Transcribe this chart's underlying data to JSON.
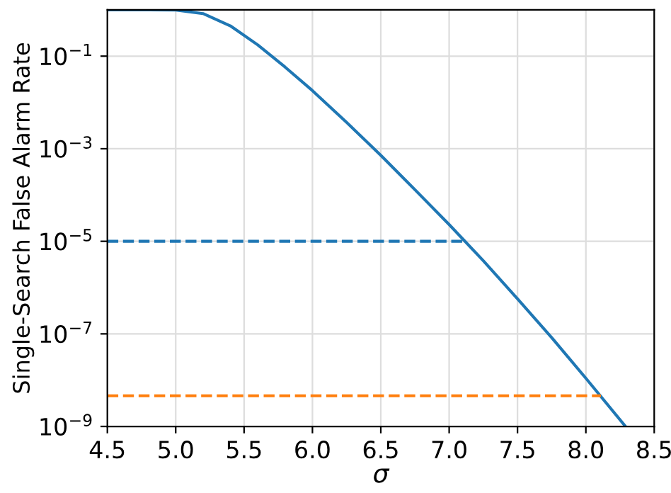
{
  "chart_data": {
    "type": "line",
    "xlabel": "σ",
    "ylabel": "Single-Search False Alarm Rate",
    "xlim": [
      4.5,
      8.5
    ],
    "ylim": [
      1e-09,
      1
    ],
    "log": "y",
    "grid": true,
    "line_style": "solid",
    "marker": "none",
    "xticks": [
      4.5,
      {
        "value": 5.0,
        "label": "5.0"
      },
      5.5,
      {
        "value": 6.0,
        "label": "6.0"
      },
      6.5,
      {
        "value": 7.0,
        "label": "7.0"
      },
      7.5,
      {
        "value": 8.0,
        "label": "8.0"
      },
      8.5
    ],
    "yticks": [
      {
        "value": 1e-09,
        "label": "10$^{−9}$"
      },
      {
        "value": 1e-07,
        "label": "10$^{−7}$"
      },
      {
        "value": 1e-05,
        "label": "10$^{−5}$"
      },
      {
        "value": 0.001,
        "label": "10$^{−3}$"
      },
      {
        "value": 0.1,
        "label": "10$^{−1}$"
      }
    ],
    "series": [
      {
        "color": "#1f77b4",
        "x": [
          4.5,
          4.8,
          5.0,
          5.2,
          5.4,
          5.6,
          5.8,
          6.0,
          6.25,
          6.5,
          6.75,
          7.0,
          7.25,
          7.5,
          7.75,
          8.0,
          8.29
        ],
        "values": [
          1,
          1,
          0.99,
          0.83,
          0.45,
          0.175,
          0.058,
          0.018,
          0.0037,
          0.00072,
          0.00013,
          2.3e-05,
          3.8e-06,
          5.7e-07,
          8.3e-08,
          1.1e-08,
          1e-09
        ]
      },
      {
        "color": "#1f77b4",
        "line_style": "dashed",
        "x": [
          4.5,
          7.1
        ],
        "values": [
          1e-05,
          1e-05
        ]
      },
      {
        "color": "#ff7f0e",
        "line_style": "dashed",
        "x": [
          4.5,
          8.11
        ],
        "values": [
          4.6e-09,
          4.6e-09
        ]
      }
    ]
  }
}
